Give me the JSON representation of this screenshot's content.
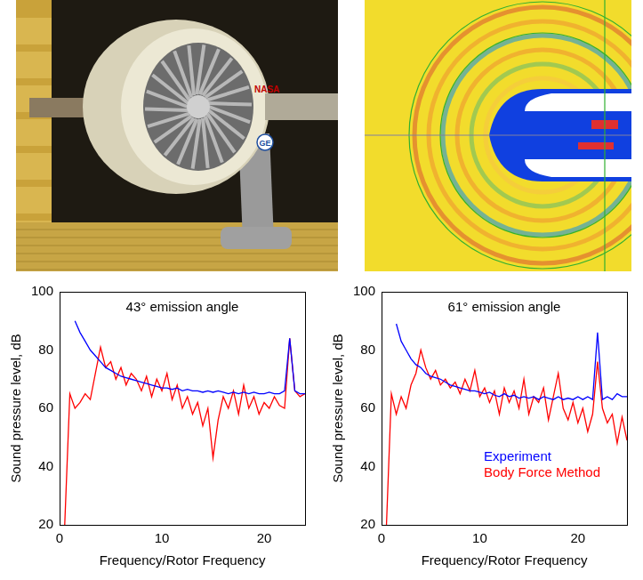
{
  "engine_photo": {
    "labels": [
      "NASA",
      "GE"
    ]
  },
  "chart_data": [
    {
      "type": "line",
      "title": "43° emission angle",
      "x_label": "Frequency/Rotor Frequency",
      "y_label": "Sound pressure level, dB",
      "x": [
        0.5,
        1,
        1.5,
        2,
        2.5,
        3,
        3.5,
        4,
        4.5,
        5,
        5.5,
        6,
        6.5,
        7,
        7.5,
        8,
        8.5,
        9,
        9.5,
        10,
        10.5,
        11,
        11.5,
        12,
        12.5,
        13,
        13.5,
        14,
        14.5,
        15,
        15.5,
        16,
        16.5,
        17,
        17.5,
        18,
        18.5,
        19,
        19.5,
        20,
        20.5,
        21,
        21.5,
        22,
        22.5,
        23,
        23.5,
        24
      ],
      "series": [
        {
          "name": "Experiment",
          "color": "#0000ff",
          "values": [
            null,
            null,
            90,
            86,
            83,
            80,
            78,
            76,
            74,
            73,
            72,
            71,
            70.5,
            70,
            69.5,
            69,
            68.5,
            68,
            67.5,
            67,
            67,
            66.5,
            67,
            66,
            66.5,
            66,
            66,
            65.5,
            66,
            65.5,
            66,
            65.5,
            65,
            65.5,
            65,
            65.5,
            65,
            65.5,
            65,
            65,
            65.5,
            65,
            65,
            66,
            84,
            66,
            65,
            65
          ]
        },
        {
          "name": "Body Force Method",
          "color": "#ff0000",
          "values": [
            20,
            65,
            60,
            62,
            65,
            63,
            72,
            81,
            74,
            76,
            70,
            74,
            68,
            72,
            70,
            66,
            71,
            64,
            70,
            66,
            72,
            63,
            68,
            60,
            64,
            58,
            62,
            54,
            60,
            43,
            56,
            64,
            60,
            66,
            58,
            68,
            60,
            64,
            58,
            62,
            60,
            64,
            61,
            60,
            84,
            66,
            64,
            65
          ]
        }
      ],
      "xlim": [
        0,
        24
      ],
      "xticks": [
        0,
        10,
        20
      ],
      "ylim": [
        20,
        100
      ],
      "yticks": [
        20,
        40,
        60,
        80,
        100
      ],
      "grid": false
    },
    {
      "type": "line",
      "title": "61° emission angle",
      "x_label": "Frequency/Rotor Frequency",
      "y_label": "Sound pressure level, dB",
      "x": [
        0.5,
        1,
        1.5,
        2,
        2.5,
        3,
        3.5,
        4,
        4.5,
        5,
        5.5,
        6,
        6.5,
        7,
        7.5,
        8,
        8.5,
        9,
        9.5,
        10,
        10.5,
        11,
        11.5,
        12,
        12.5,
        13,
        13.5,
        14,
        14.5,
        15,
        15.5,
        16,
        16.5,
        17,
        17.5,
        18,
        18.5,
        19,
        19.5,
        20,
        20.5,
        21,
        21.5,
        22,
        22.5,
        23,
        23.5,
        24,
        24.5,
        25
      ],
      "series": [
        {
          "name": "Experiment",
          "color": "#0000ff",
          "values": [
            null,
            null,
            89,
            83,
            80,
            77,
            75,
            74,
            72,
            71,
            70.5,
            70,
            69,
            68,
            67.5,
            67,
            66.5,
            66,
            66,
            65.5,
            65,
            65.5,
            64.5,
            64,
            65,
            64,
            64.5,
            63.5,
            64,
            63.5,
            64,
            63,
            64,
            63.5,
            63,
            64,
            63,
            63.5,
            63,
            64,
            63,
            64,
            63,
            86,
            63,
            64,
            63,
            65,
            64,
            64
          ]
        },
        {
          "name": "Body Force Method",
          "color": "#ff0000",
          "values": [
            20,
            65,
            58,
            64,
            60,
            68,
            72,
            80,
            74,
            70,
            73,
            68,
            70,
            67,
            69,
            65,
            70,
            66,
            73,
            64,
            67,
            62,
            66,
            58,
            67,
            62,
            66,
            60,
            70,
            58,
            64,
            62,
            67,
            56,
            64,
            72,
            60,
            56,
            62,
            55,
            60,
            52,
            58,
            76,
            60,
            55,
            58,
            48,
            57,
            49
          ]
        }
      ],
      "xlim": [
        0,
        25
      ],
      "xticks": [
        0,
        10,
        20
      ],
      "ylim": [
        20,
        100
      ],
      "yticks": [
        20,
        40,
        60,
        80,
        100
      ],
      "grid": false,
      "legend": "lower right"
    }
  ]
}
